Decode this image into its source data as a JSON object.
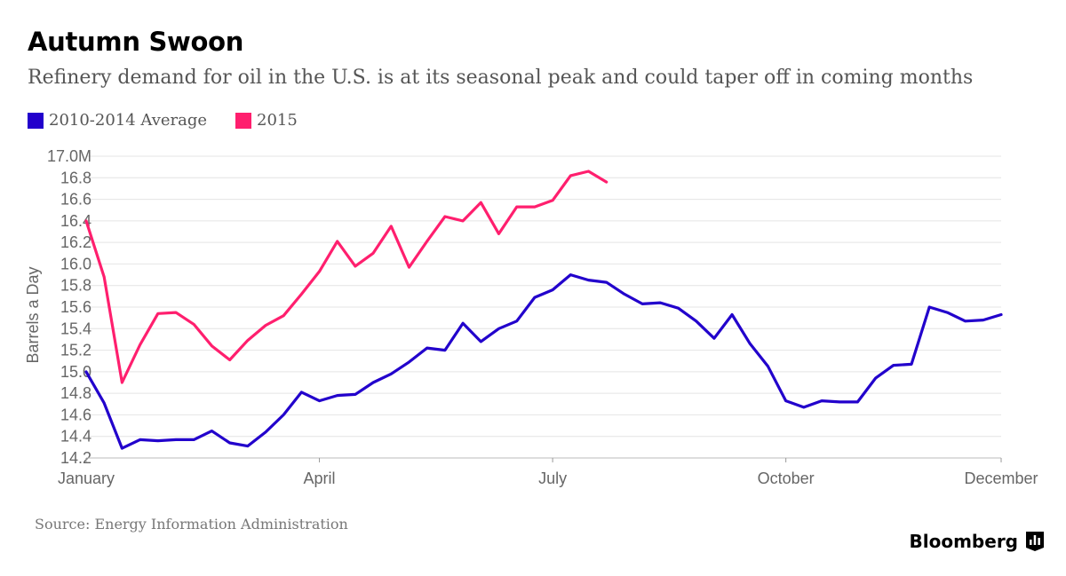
{
  "header": {
    "title": "Autumn Swoon",
    "subtitle": "Refinery demand for oil in the U.S. is at its seasonal peak and could taper off in coming months"
  },
  "legend": [
    {
      "label": "2010-2014 Average",
      "color": "#2200cc"
    },
    {
      "label": "2015",
      "color": "#ff1f6e"
    }
  ],
  "footer": {
    "source": "Source: Energy Information Administration",
    "brand": "Bloomberg"
  },
  "chart_data": {
    "type": "line",
    "ylabel": "Barrels a Day",
    "ylim": [
      14.2,
      17.0
    ],
    "xlim": [
      1,
      52
    ],
    "y_ticks": [
      "17.0M",
      "16.8",
      "16.6",
      "16.4",
      "16.2",
      "16.0",
      "15.8",
      "15.6",
      "15.4",
      "15.2",
      "15.0",
      "14.8",
      "14.6",
      "14.4",
      "14.2"
    ],
    "x_ticks": [
      {
        "label": "January",
        "week": 1
      },
      {
        "label": "April",
        "week": 14
      },
      {
        "label": "July",
        "week": 27
      },
      {
        "label": "October",
        "week": 40
      },
      {
        "label": "December",
        "week": 52
      }
    ],
    "grid": true,
    "series": [
      {
        "name": "2010-2014 Average",
        "color": "#2200cc",
        "x": [
          1,
          2,
          3,
          4,
          5,
          6,
          7,
          8,
          9,
          10,
          11,
          12,
          13,
          14,
          15,
          16,
          17,
          18,
          19,
          20,
          21,
          22,
          23,
          24,
          25,
          26,
          27,
          28,
          29,
          30,
          31,
          32,
          33,
          34,
          35,
          36,
          37,
          38,
          39,
          40,
          41,
          42,
          43,
          44,
          45,
          46,
          47,
          48,
          49,
          50,
          51,
          52
        ],
        "values": [
          15.0,
          14.71,
          14.29,
          14.37,
          14.36,
          14.37,
          14.37,
          14.45,
          14.34,
          14.31,
          14.44,
          14.6,
          14.81,
          14.73,
          14.78,
          14.79,
          14.9,
          14.98,
          15.09,
          15.22,
          15.2,
          15.45,
          15.28,
          15.4,
          15.47,
          15.69,
          15.76,
          15.9,
          15.85,
          15.83,
          15.72,
          15.63,
          15.64,
          15.59,
          15.47,
          15.31,
          15.53,
          15.26,
          15.05,
          14.73,
          14.67,
          14.73,
          14.72,
          14.72,
          14.94,
          15.06,
          15.07,
          15.6,
          15.55,
          15.47,
          15.48,
          15.53
        ]
      },
      {
        "name": "2015",
        "color": "#ff1f6e",
        "x": [
          1,
          2,
          3,
          4,
          5,
          6,
          7,
          8,
          9,
          10,
          11,
          12,
          13,
          14,
          15,
          16,
          17,
          18,
          19,
          20,
          21,
          22,
          23,
          24,
          25,
          26,
          27,
          28,
          29,
          30
        ],
        "values": [
          16.4,
          15.88,
          14.9,
          15.25,
          15.54,
          15.55,
          15.44,
          15.24,
          15.11,
          15.29,
          15.43,
          15.52,
          15.72,
          15.93,
          16.21,
          15.98,
          16.1,
          16.35,
          15.97,
          16.21,
          16.44,
          16.4,
          16.57,
          16.28,
          16.53,
          16.53,
          16.59,
          16.82,
          16.86,
          16.76
        ]
      }
    ]
  }
}
